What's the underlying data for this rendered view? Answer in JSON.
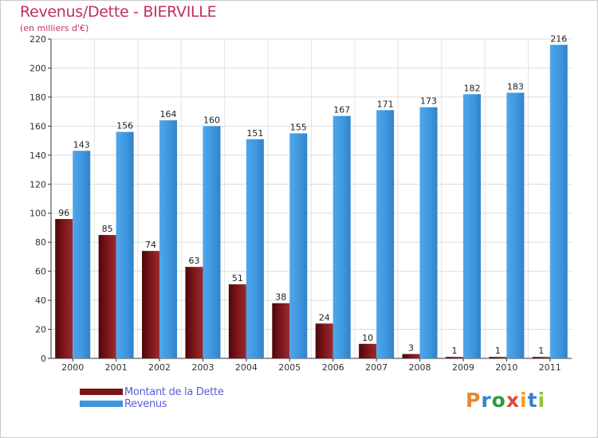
{
  "chart_data": {
    "type": "bar",
    "title": "Revenus/Dette - BIERVILLE",
    "subtitle": "(en milliers d'€)",
    "categories": [
      "2000",
      "2001",
      "2002",
      "2003",
      "2004",
      "2005",
      "2006",
      "2007",
      "2008",
      "2009",
      "2010",
      "2011"
    ],
    "series": [
      {
        "name": "Montant de la Dette",
        "color": "#7a1418",
        "values": [
          96,
          85,
          74,
          63,
          51,
          38,
          24,
          10,
          3,
          1,
          1,
          1
        ]
      },
      {
        "name": "Revenus",
        "color": "#3d95dc",
        "values": [
          143,
          156,
          164,
          160,
          151,
          155,
          167,
          171,
          173,
          182,
          183,
          216
        ]
      }
    ],
    "ylim": [
      0,
      220
    ],
    "yticks": [
      0,
      20,
      40,
      60,
      80,
      100,
      120,
      140,
      160,
      180,
      200,
      220
    ],
    "grid": true,
    "legend_position": "bottom-left"
  },
  "logo": {
    "text": "Proxiti",
    "colors": [
      "#e8892b",
      "#3a7fd0",
      "#2a9c3c",
      "#e04a3a",
      "#f0a020",
      "#3a7fd0",
      "#8cc63f"
    ]
  }
}
